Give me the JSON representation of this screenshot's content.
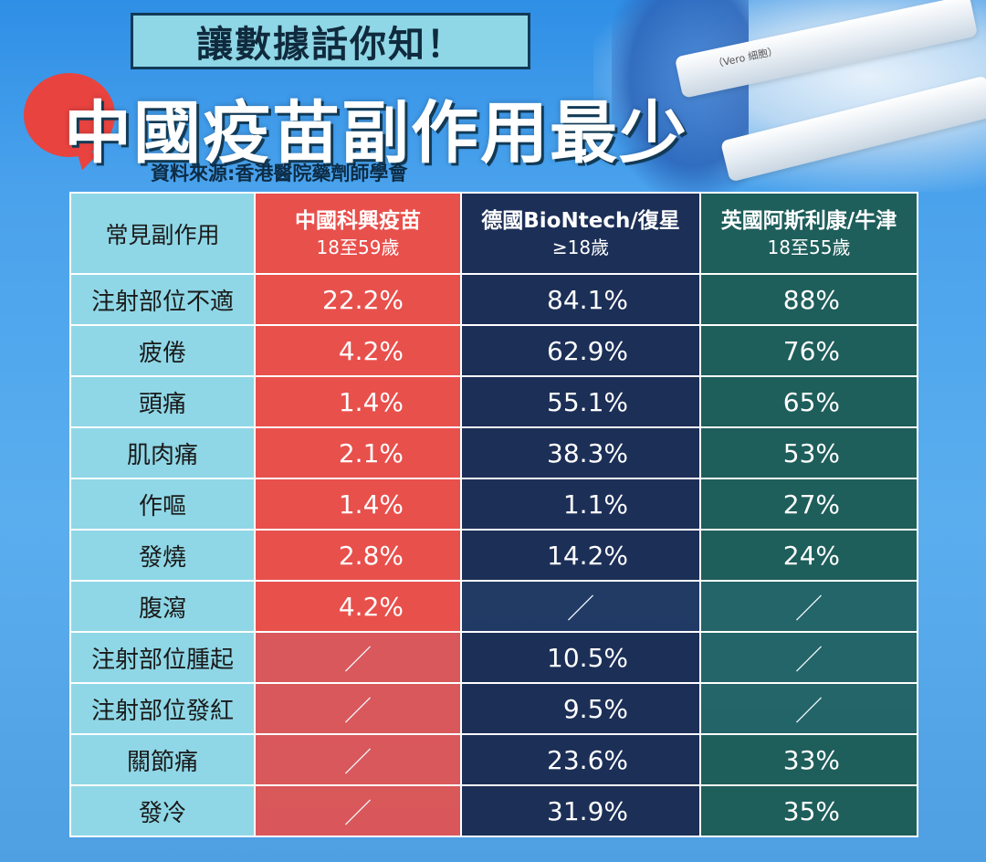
{
  "header": {
    "tagline": "讓數據話你知！",
    "title": "中國疫苗副作用最少",
    "source": "資料來源:香港醫院藥劑師學會"
  },
  "photo": {
    "syringe_label": "（Vero 細胞）"
  },
  "table": {
    "columns": [
      {
        "name": "常見副作用",
        "age": ""
      },
      {
        "name": "中國科興疫苗",
        "age": "18至59歲"
      },
      {
        "name": "德國BioNtech/復星",
        "age": "≥18歲"
      },
      {
        "name": "英國阿斯利康/牛津",
        "age": "18至55歲"
      }
    ],
    "rows": [
      {
        "label": "注射部位不適",
        "china": "22.2%",
        "de": "84.1%",
        "uk": "88%"
      },
      {
        "label": "疲倦",
        "china": "4.2%",
        "de": "62.9%",
        "uk": "76%"
      },
      {
        "label": "頭痛",
        "china": "1.4%",
        "de": "55.1%",
        "uk": "65%"
      },
      {
        "label": "肌肉痛",
        "china": "2.1%",
        "de": "38.3%",
        "uk": "53%"
      },
      {
        "label": "作嘔",
        "china": "1.4%",
        "de": "1.1%",
        "uk": "27%"
      },
      {
        "label": "發燒",
        "china": "2.8%",
        "de": "14.2%",
        "uk": "24%"
      },
      {
        "label": "腹瀉",
        "china": "4.2%",
        "de": "／",
        "uk": "／"
      },
      {
        "label": "注射部位腫起",
        "china": "／",
        "de": "10.5%",
        "uk": "／"
      },
      {
        "label": "注射部位發紅",
        "china": "／",
        "de": "9.5%",
        "uk": "／"
      },
      {
        "label": "關節痛",
        "china": "／",
        "de": "23.6%",
        "uk": "33%"
      },
      {
        "label": "發冷",
        "china": "／",
        "de": "31.9%",
        "uk": "35%"
      }
    ]
  },
  "colors": {
    "china": "#e8504c",
    "germany": "#1c2f57",
    "uk": "#1e5e5b",
    "side": "#8fd7e6",
    "background": "#4aa2ec"
  }
}
